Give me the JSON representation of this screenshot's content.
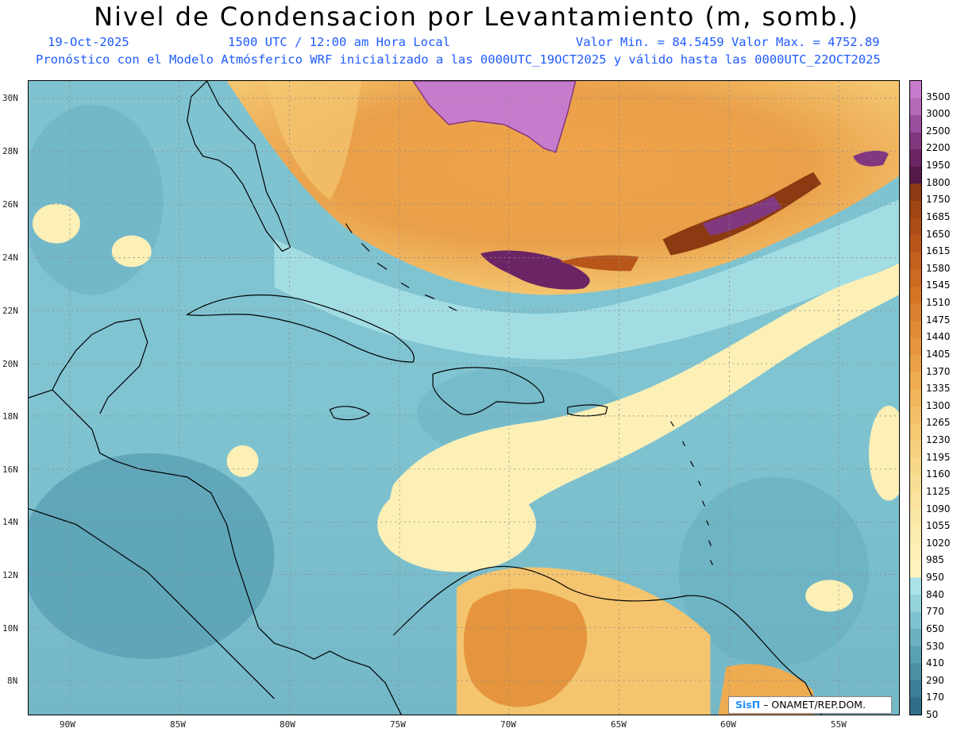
{
  "title": "Nivel de Condensacion por Levantamiento (m, somb.)",
  "header": {
    "date": "19-Oct-2025",
    "time": "1500 UTC / 12:00 am Hora Local",
    "minmax": "Valor Min. = 84.5459  Valor Max. = 4752.89",
    "model_line": "Pronóstico con el Modelo Atmósferico WRF inicializado a las 0000UTC_19OCT2025 y válido hasta las  0000UTC_22OCT2025"
  },
  "axes": {
    "lat_labels": [
      "30N",
      "28N",
      "26N",
      "24N",
      "22N",
      "20N",
      "18N",
      "16N",
      "14N",
      "12N",
      "10N",
      "8N"
    ],
    "lon_labels": [
      "90W",
      "85W",
      "80W",
      "75W",
      "70W",
      "65W",
      "60W",
      "55W"
    ]
  },
  "colorbar": {
    "labels": [
      "3500",
      "3000",
      "2500",
      "2200",
      "1950",
      "1800",
      "1750",
      "1685",
      "1650",
      "1615",
      "1580",
      "1545",
      "1510",
      "1475",
      "1440",
      "1405",
      "1370",
      "1335",
      "1300",
      "1265",
      "1230",
      "1195",
      "1160",
      "1125",
      "1090",
      "1055",
      "1020",
      "985",
      "950",
      "840",
      "770",
      "650",
      "530",
      "410",
      "290",
      "170",
      "50"
    ],
    "colors": [
      "#c77bcc",
      "#b36ab8",
      "#9a4f9f",
      "#82387f",
      "#6b2464",
      "#561a4a",
      "#8c3a12",
      "#a04514",
      "#ad4c17",
      "#b8561a",
      "#c2601d",
      "#cc6a21",
      "#d47526",
      "#da8030",
      "#e08a36",
      "#e5953d",
      "#e9a046",
      "#eeab50",
      "#f1b55b",
      "#f3bf66",
      "#f5c872",
      "#f6d07e",
      "#f7d88a",
      "#f8de95",
      "#f9e39f",
      "#fae8a8",
      "#fbecb0",
      "#fcf0b7",
      "#fdf3bd",
      "#a9e2e8",
      "#95d3dd",
      "#7fc2d0",
      "#6bb1c2",
      "#5aa0b4",
      "#4b8fa5",
      "#3d7f97",
      "#2f6f88"
    ]
  },
  "credit": {
    "logo": "SisΠ",
    "org": "– ONAMET/REP.DOM."
  }
}
